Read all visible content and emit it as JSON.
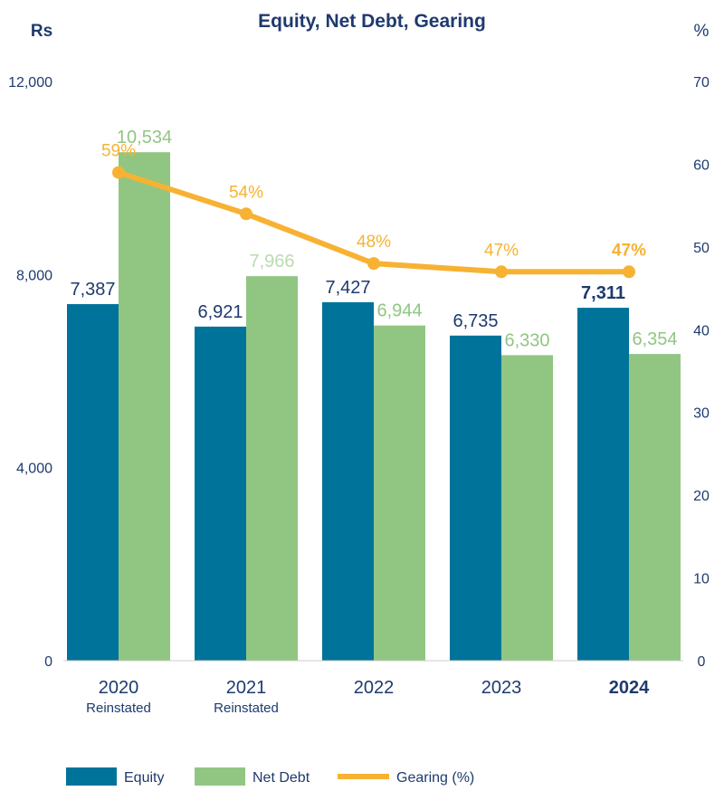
{
  "chart_data": {
    "type": "bar",
    "title": "Equity, Net Debt, Gearing",
    "ylabel": "Rs",
    "y2label": "%",
    "ylim": [
      0,
      12000
    ],
    "y2lim": [
      0,
      70
    ],
    "yticks": [
      "0",
      "4,000",
      "8,000",
      "12,000"
    ],
    "ytick_values": [
      0,
      4000,
      8000,
      12000
    ],
    "y2ticks": [
      "0",
      "10",
      "20",
      "30",
      "40",
      "50",
      "60",
      "70"
    ],
    "y2tick_values": [
      0,
      10,
      20,
      30,
      40,
      50,
      60,
      70
    ],
    "categories": [
      "2020",
      "2021",
      "2022",
      "2023",
      "2024"
    ],
    "category_sublabels": [
      "Reinstated",
      "Reinstated",
      "",
      "",
      ""
    ],
    "series": [
      {
        "name": "Equity",
        "type": "bar",
        "color": "#00739a",
        "values": [
          7387,
          6921,
          7427,
          6735,
          7311
        ],
        "labels": [
          "7,387",
          "6,921",
          "7,427",
          "6,735",
          "7,311"
        ]
      },
      {
        "name": "Net Debt",
        "type": "bar",
        "color": "#90c682",
        "values": [
          10534,
          7966,
          6944,
          6330,
          6354
        ],
        "labels": [
          "10,534",
          "7,966",
          "6,944",
          "6,330",
          "6,354"
        ]
      },
      {
        "name": "Gearing (%)",
        "type": "line",
        "axis": "right",
        "color": "#f7b233",
        "values": [
          59,
          54,
          48,
          47,
          47
        ],
        "labels": [
          "59%",
          "54%",
          "48%",
          "47%",
          "47%"
        ]
      }
    ],
    "legend": "bottom",
    "grid": false
  }
}
